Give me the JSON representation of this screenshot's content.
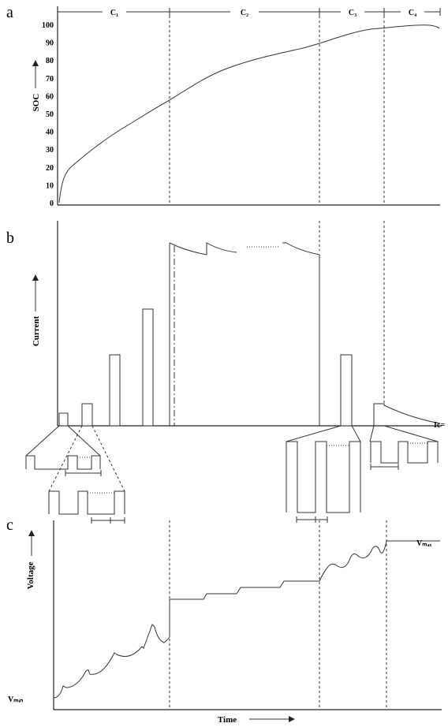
{
  "panels": [
    {
      "label": "a",
      "phase_labels": [
        "C₁",
        "C₂",
        "C₃",
        "C₄"
      ],
      "y_axis_label": "SOC",
      "y_ticks": [
        0,
        10,
        20,
        30,
        40,
        50,
        60,
        70,
        80,
        90,
        100
      ]
    },
    {
      "label": "b",
      "y_axis_label": "Current",
      "end_label": "Ic="
    },
    {
      "label": "c",
      "y_axis_label": "Voltage",
      "min_label": "Vₘᵢₙ",
      "max_label": "Vₘₐₓ",
      "x_axis_label": "Time"
    }
  ]
}
